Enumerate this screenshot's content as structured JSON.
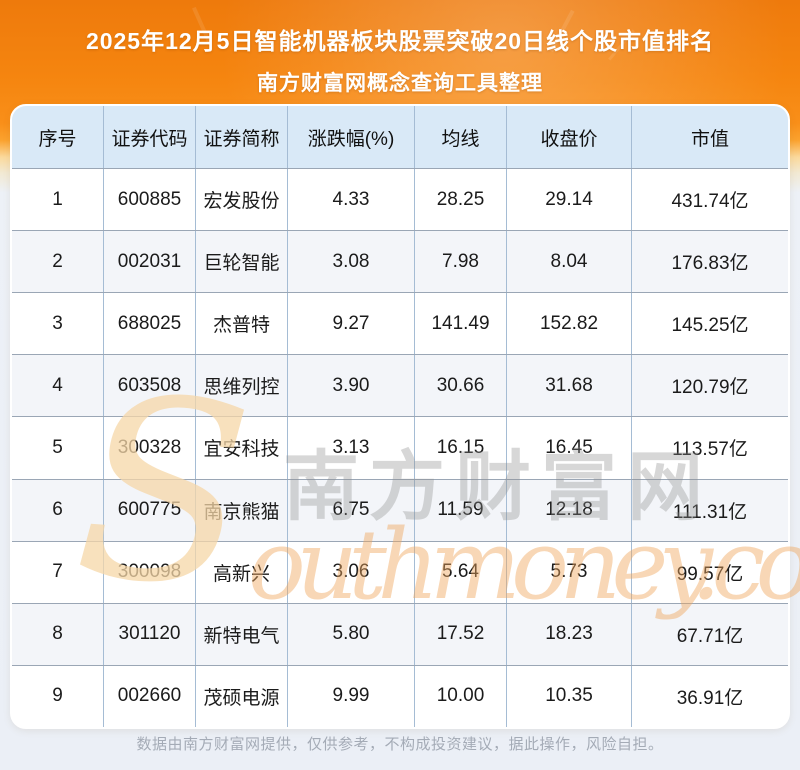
{
  "header": {
    "title_line1": "2025年12月5日智能机器板块股票突破20日线个股市值排名",
    "title_line2": "南方财富网概念查询工具整理"
  },
  "watermark": {
    "initial": "S",
    "site_cjk": "南方财富网",
    "site_latin": "outhmoney.com"
  },
  "footer": {
    "disclaimer": "数据由南方财富网提供，仅供参考，不构成投资建议，据此操作，风险自担。"
  },
  "colors": {
    "banner_orange_top": "#ee7a0c",
    "banner_orange_bright": "#f98f19",
    "page_bottom_bg": "#ebeff6",
    "header_row_bg": "#d9e9f7",
    "even_row_bg": "#f3f5f9",
    "odd_row_bg": "#ffffff",
    "grid_vertical_line": "#a5bcd4",
    "grid_horizontal_line": "#9aa6b5",
    "title_text": "#ffffff",
    "cell_text": "#1b1b1b",
    "footer_text": "#a4abb6",
    "watermark_gray": "#8f8f8f",
    "watermark_orange": "#f0a75e",
    "watermark_cream": "#f6d7a8"
  },
  "chart_data": {
    "type": "table",
    "title": "2025年12月5日智能机器板块股票突破20日线个股市值排名",
    "subtitle": "南方财富网概念查询工具整理",
    "columns": [
      "序号",
      "证券代码",
      "证券简称",
      "涨跌幅(%)",
      "均线",
      "收盘价",
      "市值"
    ],
    "rows": [
      [
        "1",
        "600885",
        "宏发股份",
        "4.33",
        "28.25",
        "29.14",
        "431.74亿"
      ],
      [
        "2",
        "002031",
        "巨轮智能",
        "3.08",
        "7.98",
        "8.04",
        "176.83亿"
      ],
      [
        "3",
        "688025",
        "杰普特",
        "9.27",
        "141.49",
        "152.82",
        "145.25亿"
      ],
      [
        "4",
        "603508",
        "思维列控",
        "3.90",
        "30.66",
        "31.68",
        "120.79亿"
      ],
      [
        "5",
        "300328",
        "宜安科技",
        "3.13",
        "16.15",
        "16.45",
        "113.57亿"
      ],
      [
        "6",
        "600775",
        "南京熊猫",
        "6.75",
        "11.59",
        "12.18",
        "111.31亿"
      ],
      [
        "7",
        "300098",
        "高新兴",
        "3.06",
        "5.64",
        "5.73",
        "99.57亿"
      ],
      [
        "8",
        "301120",
        "新特电气",
        "5.80",
        "17.52",
        "18.23",
        "67.71亿"
      ],
      [
        "9",
        "002660",
        "茂硕电源",
        "9.99",
        "10.00",
        "10.35",
        "36.91亿"
      ]
    ]
  }
}
